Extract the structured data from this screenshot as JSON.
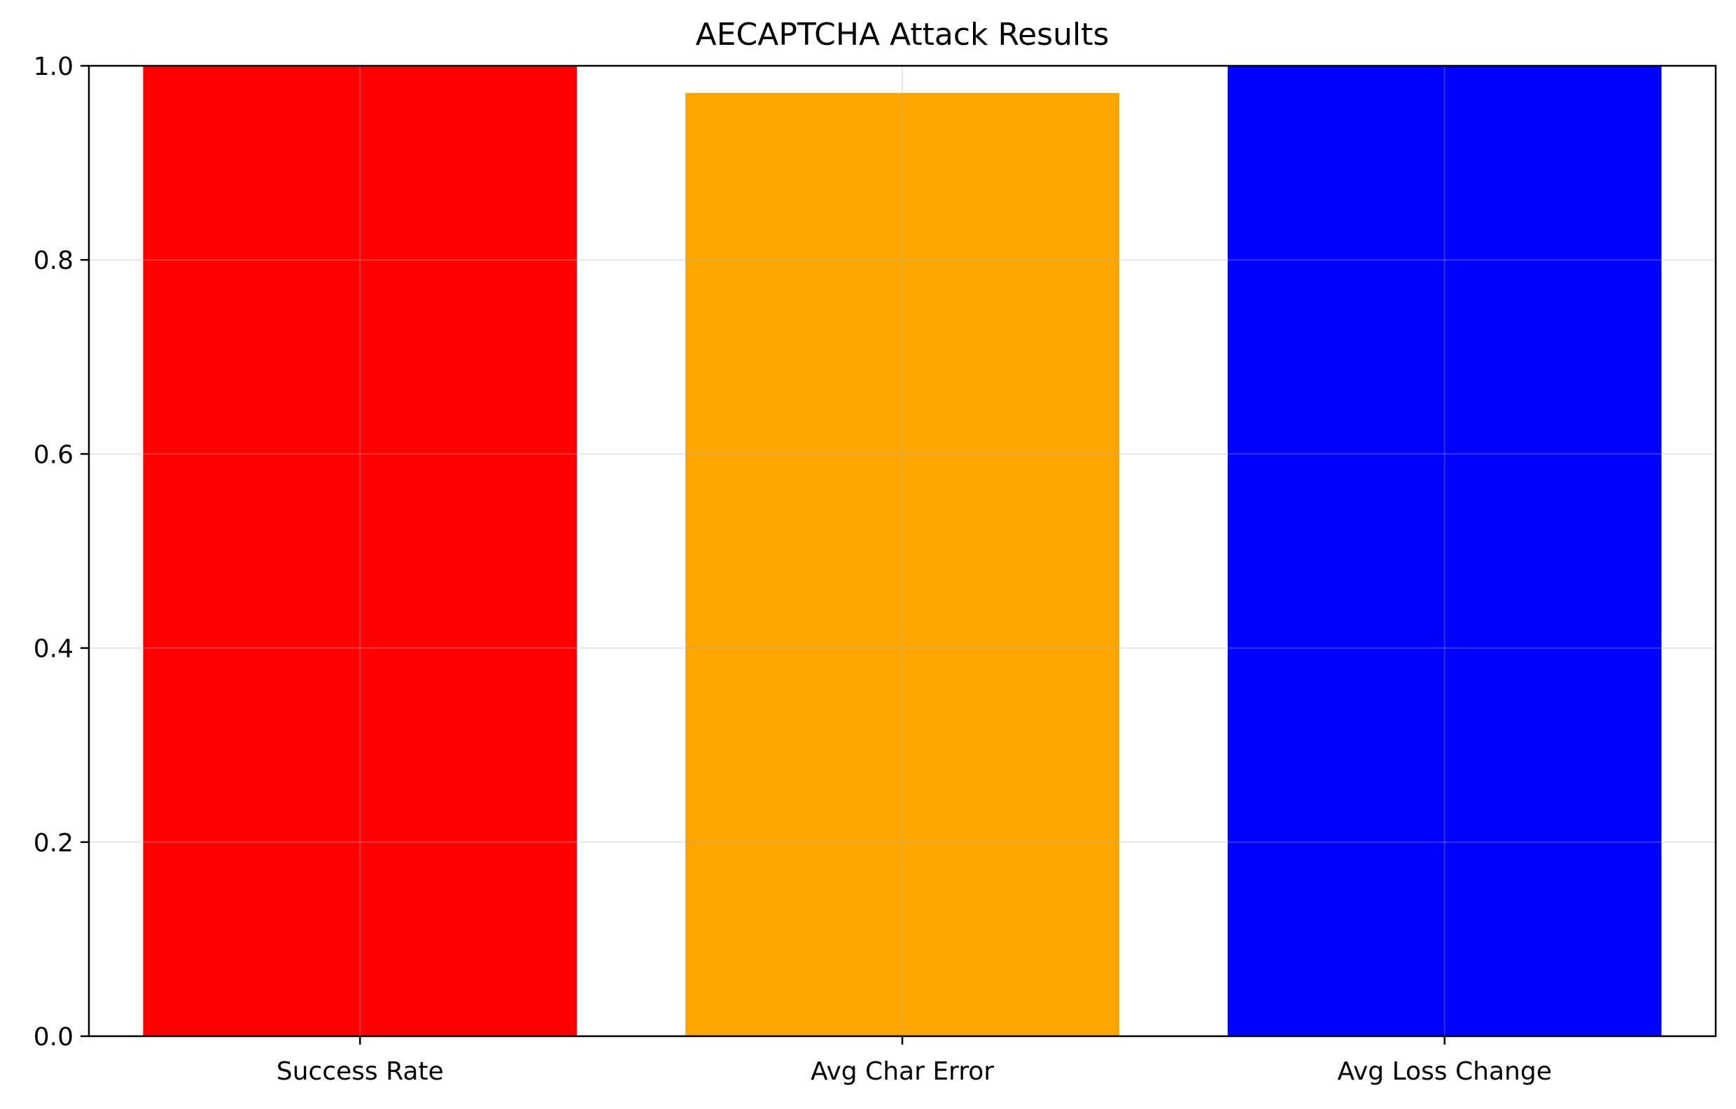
{
  "chart_data": {
    "type": "bar",
    "title": "AECAPTCHA Attack Results",
    "xlabel": "",
    "ylabel": "",
    "categories": [
      "Success Rate",
      "Avg Char Error",
      "Avg Loss Change"
    ],
    "values": [
      1.0,
      0.972,
      1.0
    ],
    "colors": [
      "#ff0000",
      "#ffa500",
      "#0000ff"
    ],
    "ylim": [
      0,
      1.0
    ],
    "yticks": [
      0.0,
      0.2,
      0.4,
      0.6,
      0.8,
      1.0
    ],
    "ytick_labels": [
      "0.0",
      "0.2",
      "0.4",
      "0.6",
      "0.8",
      "1.0"
    ],
    "grid": true,
    "grid_color": "#e6e6e6"
  }
}
